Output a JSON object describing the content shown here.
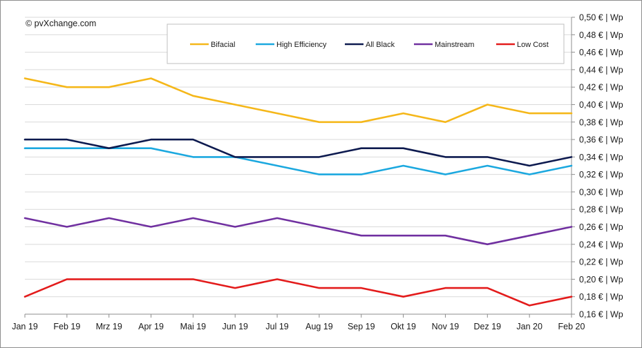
{
  "copyright": "© pvXchange.com",
  "chart_data": {
    "type": "line",
    "categories": [
      "Jan 19",
      "Feb 19",
      "Mrz 19",
      "Apr 19",
      "Mai 19",
      "Jun 19",
      "Jul 19",
      "Aug 19",
      "Sep 19",
      "Okt 19",
      "Nov 19",
      "Dez 19",
      "Jan 20",
      "Feb 20"
    ],
    "ylim": [
      0.16,
      0.5
    ],
    "yticks": [
      "0,50 € | Wp",
      "0,48 € | Wp",
      "0,46 € | Wp",
      "0,44 € | Wp",
      "0,42 € | Wp",
      "0,40 € | Wp",
      "0,38 € | Wp",
      "0,36 € | Wp",
      "0,34 € | Wp",
      "0,32 € | Wp",
      "0,30 € | Wp",
      "0,28 € | Wp",
      "0,26 € | Wp",
      "0,24 € | Wp",
      "0,22 € | Wp",
      "0,20 € | Wp",
      "0,18 € | Wp",
      "0,16 € | Wp"
    ],
    "grid": true,
    "legend_position": "top",
    "series": [
      {
        "name": "Bifacial",
        "color": "#f5b719",
        "values": [
          0.43,
          0.42,
          0.42,
          0.43,
          0.41,
          0.4,
          0.39,
          0.38,
          0.38,
          0.39,
          0.38,
          0.4,
          0.39,
          0.39
        ]
      },
      {
        "name": "High Efficiency",
        "color": "#1ba8df",
        "values": [
          0.35,
          0.35,
          0.35,
          0.35,
          0.34,
          0.34,
          0.33,
          0.32,
          0.32,
          0.33,
          0.32,
          0.33,
          0.32,
          0.33
        ]
      },
      {
        "name": "All Black",
        "color": "#0d1a4f",
        "values": [
          0.36,
          0.36,
          0.35,
          0.36,
          0.36,
          0.34,
          0.34,
          0.34,
          0.35,
          0.35,
          0.34,
          0.34,
          0.33,
          0.34
        ]
      },
      {
        "name": "Mainstream",
        "color": "#7030a0",
        "values": [
          0.27,
          0.26,
          0.27,
          0.26,
          0.27,
          0.26,
          0.27,
          0.26,
          0.25,
          0.25,
          0.25,
          0.24,
          0.25,
          0.26
        ]
      },
      {
        "name": "Low Cost",
        "color": "#e31b1b",
        "values": [
          0.18,
          0.2,
          0.2,
          0.2,
          0.2,
          0.19,
          0.2,
          0.19,
          0.19,
          0.18,
          0.19,
          0.19,
          0.17,
          0.18
        ]
      }
    ]
  }
}
